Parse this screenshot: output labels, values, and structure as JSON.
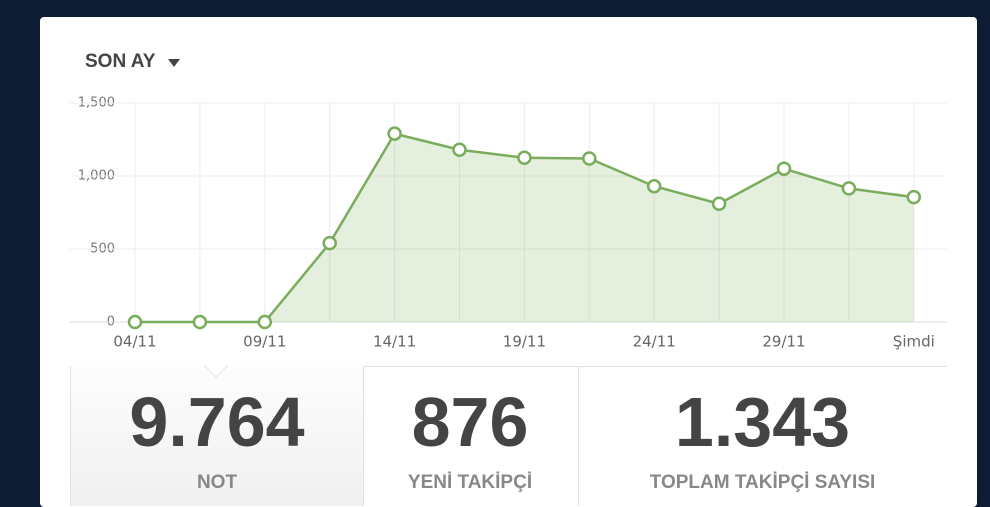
{
  "header": {
    "period": "SON AY"
  },
  "chart_data": {
    "type": "area",
    "categories": [
      "04/11",
      null,
      "09/11",
      null,
      "14/11",
      null,
      "19/11",
      null,
      "24/11",
      null,
      "29/11",
      null,
      "Şimdi"
    ],
    "values": [
      0,
      0,
      0,
      540,
      1290,
      1180,
      1125,
      1120,
      930,
      810,
      1050,
      915,
      855
    ],
    "color": "#79ad5c",
    "ylim": [
      0,
      1500
    ],
    "yticks": [
      0,
      500,
      {
        "value": 1000,
        "label": "1,000"
      },
      {
        "value": 1500,
        "label": "1,500"
      }
    ],
    "grid": true
  },
  "stats": [
    {
      "value": "9.764",
      "label": "NOT"
    },
    {
      "value": "876",
      "label": "YENİ TAKİPÇİ"
    },
    {
      "value": "1.343",
      "label": "TOPLAM TAKİPÇİ SAYISI"
    }
  ]
}
